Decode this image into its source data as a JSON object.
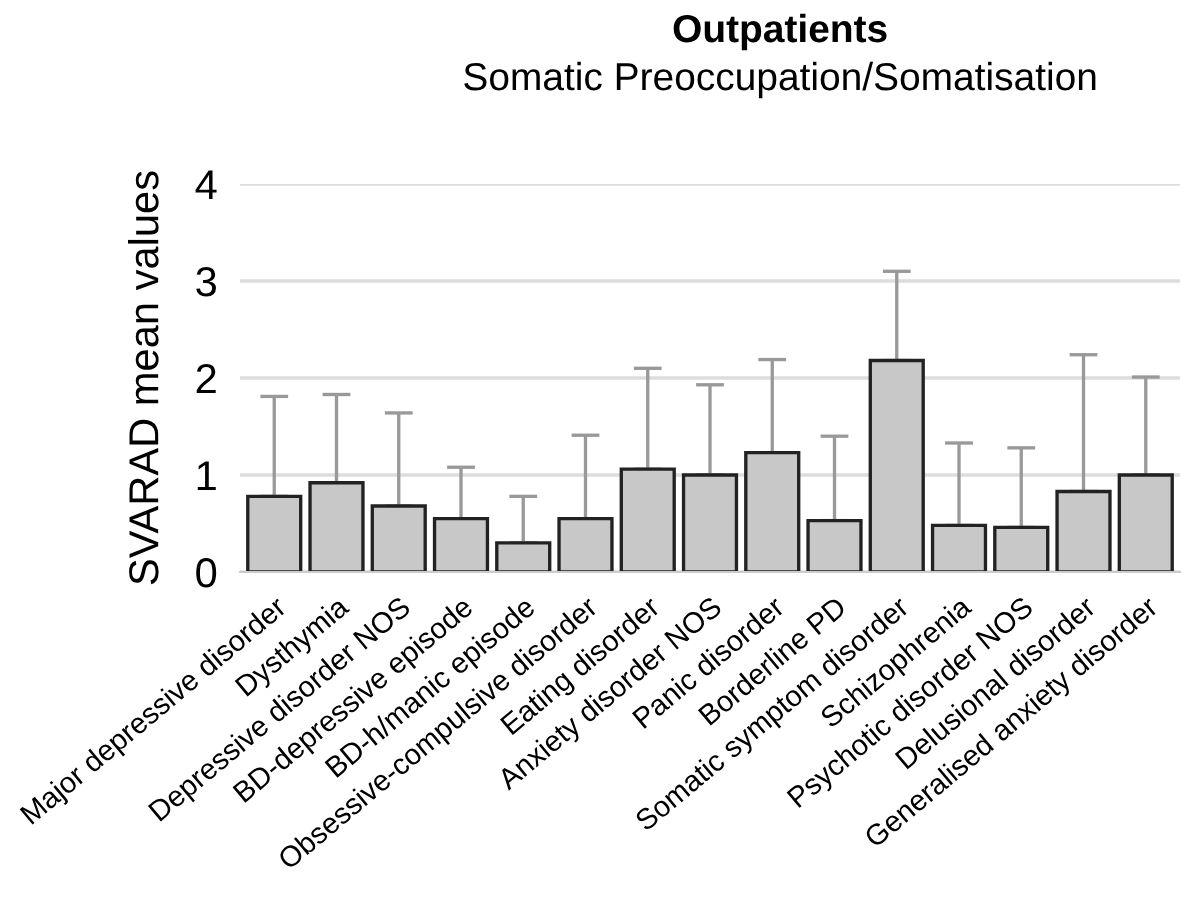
{
  "chart_data": {
    "type": "bar",
    "title": "Outpatients",
    "subtitle": "Somatic Preoccupation/Somatisation",
    "ylabel": "SVARAD mean values",
    "categories": [
      "Major depressive disorder",
      "Dysthymia",
      "Depressive disorder NOS",
      "BD-depressive episode",
      "BD-h/manic episode",
      "Obsessive-compulsive disorder",
      "Eating disorder",
      "Anxiety disorder NOS",
      "Panic disorder",
      "Borderline PD",
      "Somatic symptom disorder",
      "Schizophrenia",
      "Psychotic disorder NOS",
      "Delusional disorder",
      "Generalised anxiety disorder"
    ],
    "values": [
      0.78,
      0.92,
      0.68,
      0.55,
      0.3,
      0.55,
      1.06,
      1.0,
      1.23,
      0.53,
      2.18,
      0.48,
      0.46,
      0.83,
      1.0
    ],
    "errors": [
      [
        0.78,
        1.81
      ],
      [
        0.92,
        1.83
      ],
      [
        0.68,
        1.64
      ],
      [
        0.55,
        1.08
      ],
      [
        0.3,
        0.78
      ],
      [
        0.55,
        1.41
      ],
      [
        1.06,
        2.1
      ],
      [
        1.0,
        1.93
      ],
      [
        1.23,
        2.19
      ],
      [
        0.53,
        1.4
      ],
      [
        2.18,
        3.1
      ],
      [
        0.48,
        1.33
      ],
      [
        0.46,
        1.28
      ],
      [
        0.83,
        2.24
      ],
      [
        1.0,
        2.01
      ]
    ],
    "color": "#c8c8c8",
    "ylim": [
      0,
      4
    ],
    "yticks": [
      0,
      1,
      2,
      3,
      4
    ],
    "grid": "y"
  }
}
